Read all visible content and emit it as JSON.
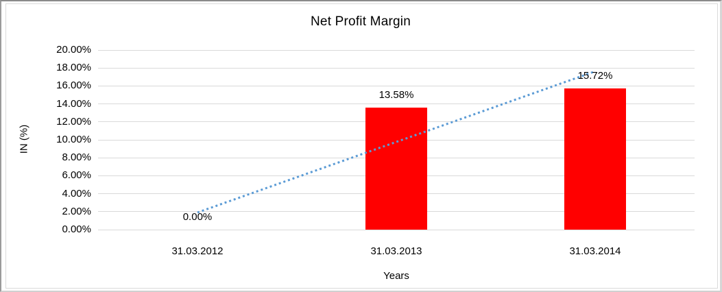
{
  "chart_data": {
    "type": "bar",
    "title": "Net Profit Margin",
    "xlabel": "Years",
    "ylabel": "IN (%)",
    "categories": [
      "31.03.2012",
      "31.03.2013",
      "31.03.2014"
    ],
    "series": [
      {
        "name": "Net Profit Margin",
        "values": [
          0,
          13.58,
          15.72
        ],
        "color": "#FF0000"
      }
    ],
    "data_labels": [
      "0.00%",
      "13.58%",
      "15.72%"
    ],
    "ylim": [
      0,
      20
    ],
    "ytick_step": 2,
    "ytick_labels": [
      "0.00%",
      "2.00%",
      "4.00%",
      "6.00%",
      "8.00%",
      "10.00%",
      "12.00%",
      "14.00%",
      "16.00%",
      "18.00%",
      "20.00%"
    ],
    "grid": true,
    "gridline_color": "#d9d9d9",
    "legend": "none",
    "trendline": {
      "type": "linear",
      "style": "dotted",
      "color": "#5B9BD5"
    }
  }
}
